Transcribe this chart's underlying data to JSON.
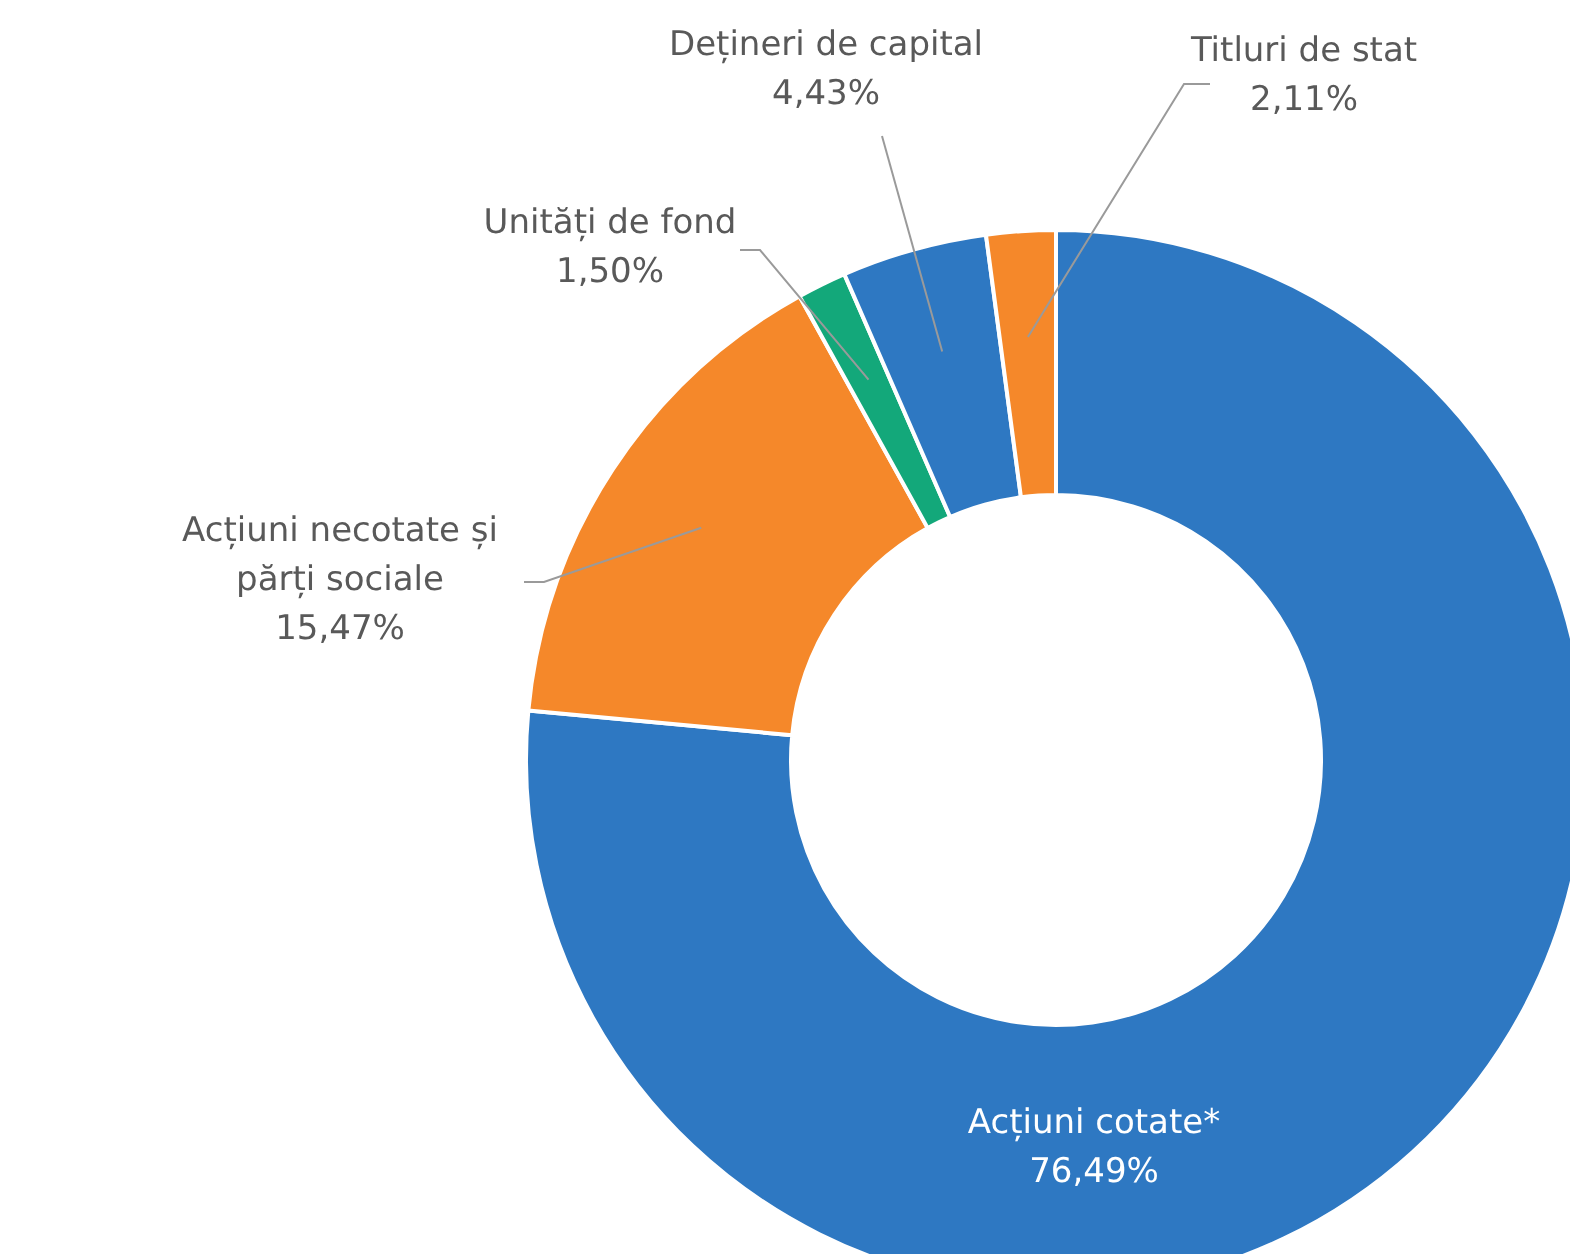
{
  "chart_data": {
    "type": "donut",
    "categories": [
      "Acțiuni cotate*",
      "Acțiuni necotate și părți sociale",
      "Unități de fond",
      "Dețineri de capital",
      "Titluri de stat"
    ],
    "values": [
      76.49,
      15.47,
      1.5,
      4.43,
      2.11
    ],
    "value_labels": [
      "76,49%",
      "15,47%",
      "1,50%",
      "4,43%",
      "2,11%"
    ],
    "colors": [
      "#2e78c2",
      "#f5882a",
      "#13a87a",
      "#2e78c2",
      "#f5882a"
    ],
    "legend": false
  }
}
